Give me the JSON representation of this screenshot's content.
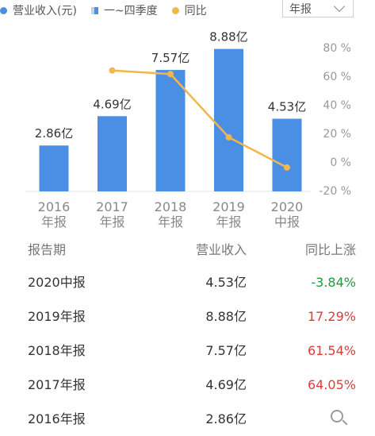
{
  "legend": {
    "revenue": "营业收入(元)",
    "quarter": "一~四季度",
    "yoy": "同比"
  },
  "period_select": {
    "value": "年报"
  },
  "colors": {
    "bar": "#4a8fe3",
    "line": "#f2b74a",
    "axis": "#999999",
    "up": "#e03a3a",
    "down": "#1e9a3a"
  },
  "chart_data": {
    "type": "bar",
    "categories": [
      "2016\n年报",
      "2017\n年报",
      "2018\n年报",
      "2019\n年报",
      "2020\n中报"
    ],
    "series": [
      {
        "name": "营业收入(元)",
        "type": "bar",
        "values": [
          2.86,
          4.69,
          7.57,
          8.88,
          4.53
        ],
        "labels": [
          "2.86亿",
          "4.69亿",
          "7.57亿",
          "8.88亿",
          "4.53亿"
        ]
      },
      {
        "name": "同比",
        "type": "line",
        "axis": "right",
        "values": [
          null,
          64.05,
          61.54,
          17.29,
          -3.84
        ]
      }
    ],
    "y_right_ticks": [
      "80 %",
      "60 %",
      "40 %",
      "20 %",
      "0 %",
      "-20 %"
    ],
    "y_right_lim": [
      -20,
      80
    ],
    "grid": false,
    "legend_position": "top-left"
  },
  "table": {
    "headers": [
      "报告期",
      "营业收入",
      "同比上涨"
    ],
    "rows": [
      {
        "period": "2020中报",
        "revenue": "4.53亿",
        "yoy": "-3.84%",
        "dir": "down"
      },
      {
        "period": "2019年报",
        "revenue": "8.88亿",
        "yoy": "17.29%",
        "dir": "up"
      },
      {
        "period": "2018年报",
        "revenue": "7.57亿",
        "yoy": "61.54%",
        "dir": "up"
      },
      {
        "period": "2017年报",
        "revenue": "4.69亿",
        "yoy": "64.05%",
        "dir": "up"
      },
      {
        "period": "2016年报",
        "revenue": "2.86亿",
        "yoy": "",
        "dir": "none"
      }
    ]
  }
}
